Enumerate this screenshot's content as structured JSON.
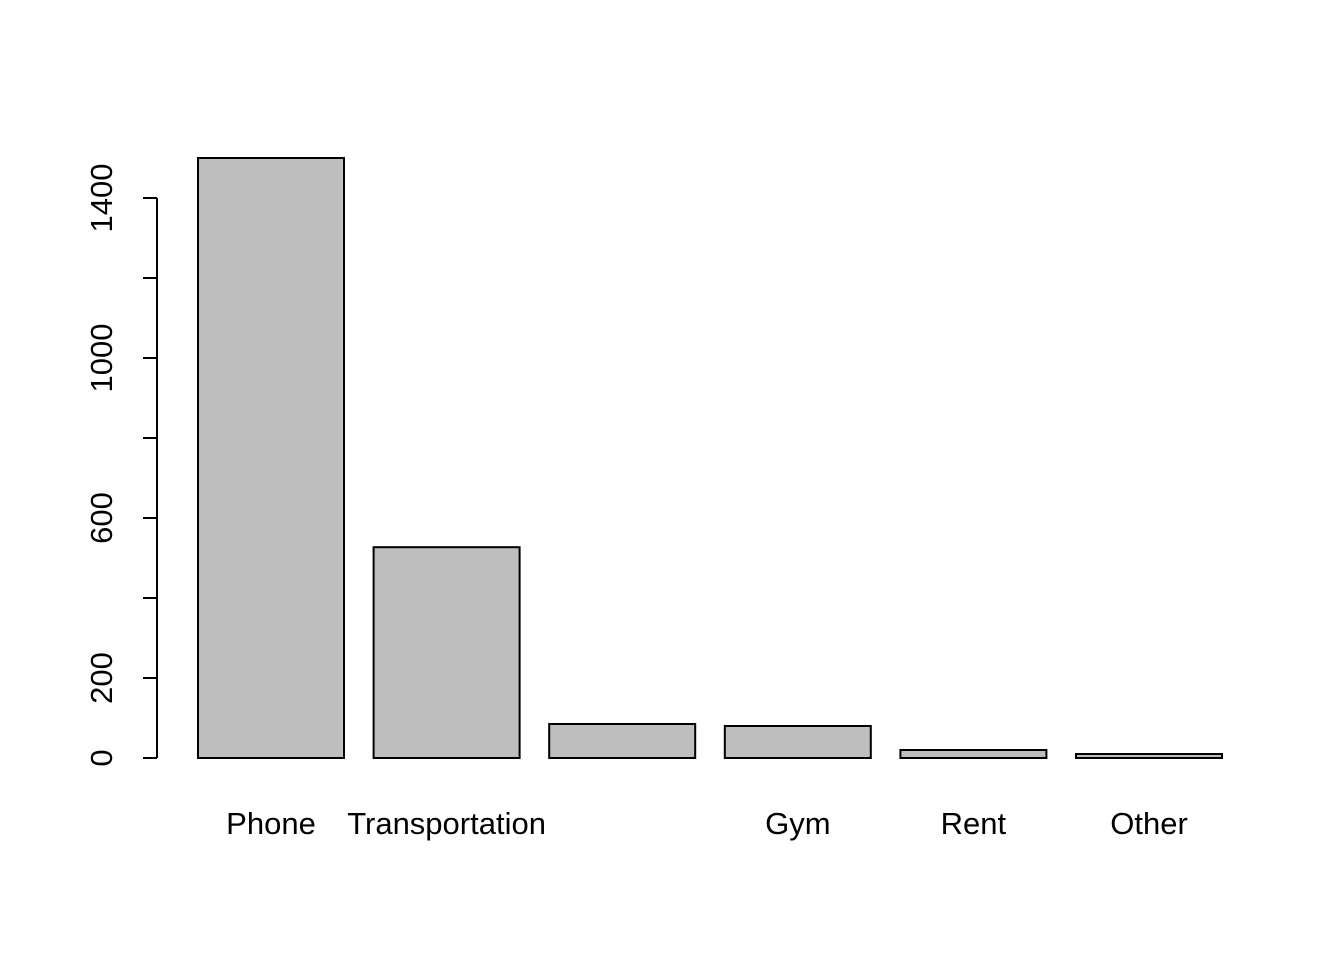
{
  "chart_data": {
    "type": "bar",
    "title": "",
    "xlabel": "",
    "ylabel": "",
    "categories": [
      "Phone",
      "Transportation",
      "",
      "Gym",
      "Rent",
      "Other"
    ],
    "values": [
      1500,
      527,
      85,
      80,
      20,
      10
    ],
    "ylim": [
      0,
      1500
    ],
    "yticks": [
      0,
      200,
      600,
      1000,
      1400
    ],
    "yticks_minor": [
      0,
      200,
      400,
      600,
      800,
      1000,
      1200,
      1400
    ],
    "grid": false,
    "legend": "none",
    "colors": {
      "bar_fill": "#bebebe",
      "bar_stroke": "#000000",
      "axis": "#000000"
    }
  }
}
